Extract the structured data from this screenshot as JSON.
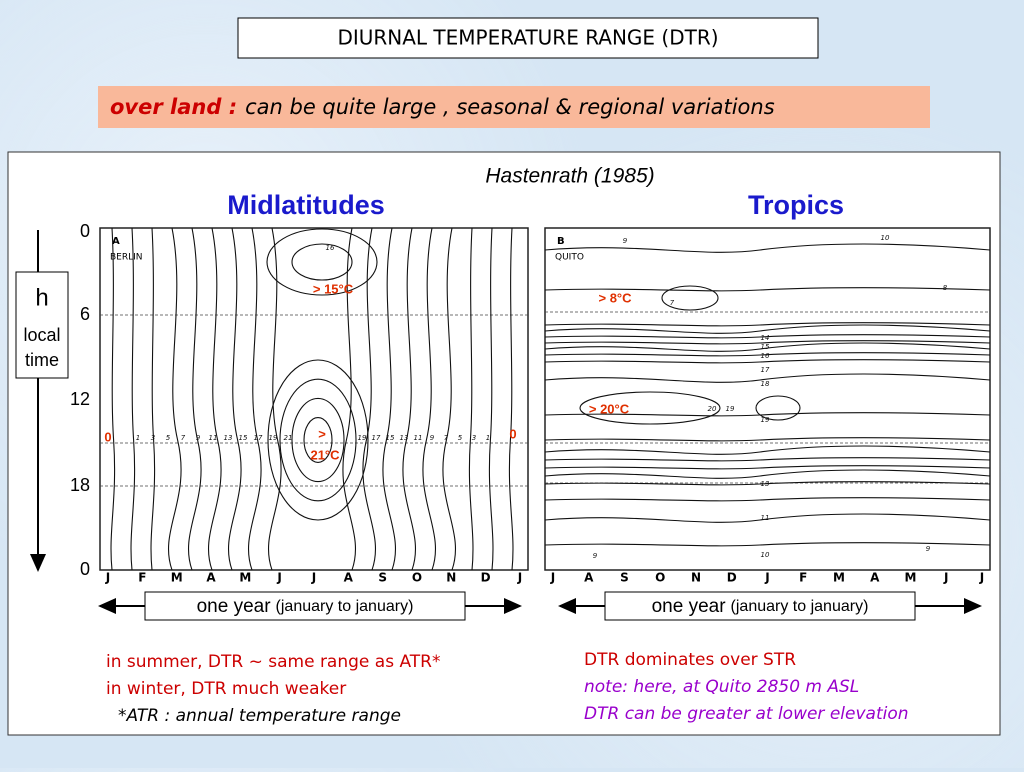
{
  "title": "DIURNAL TEMPERATURE RANGE (DTR)",
  "subtitle": {
    "lead": "over land :",
    "text": "can be quite large , seasonal & regional variations"
  },
  "source": "Hastenrath (1985)",
  "axis": {
    "ticks": [
      "0",
      "6",
      "12",
      "18",
      "0"
    ],
    "label_h": "h",
    "label_local": "local",
    "label_time": "time"
  },
  "panels": [
    {
      "title": "Midlatitudes",
      "tag": "A",
      "station": "BERLIN",
      "months": [
        "J",
        "F",
        "M",
        "A",
        "M",
        "J",
        "J",
        "A",
        "S",
        "O",
        "N",
        "D",
        "J"
      ],
      "annotations": [
        "> 15°C",
        "0",
        ">",
        "21°C",
        "0"
      ],
      "contour_labels": [
        "16",
        "1",
        "3",
        "5",
        "7",
        "9",
        "11",
        "13",
        "15",
        "17",
        "19",
        "21",
        "19",
        "17",
        "15",
        "13",
        "11",
        "9",
        "7",
        "5",
        "3",
        "1"
      ],
      "year": "one year",
      "year_note": "(january to january)",
      "notes": [
        "in summer, DTR ~ same range as ATR*",
        "in winter, DTR much weaker",
        "*ATR : annual temperature range"
      ]
    },
    {
      "title": "Tropics",
      "tag": "B",
      "station": "QUITO",
      "months": [
        "J",
        "A",
        "S",
        "O",
        "N",
        "D",
        "J",
        "F",
        "M",
        "A",
        "M",
        "J",
        "J"
      ],
      "annotations": [
        "> 8°C",
        "> 20°C"
      ],
      "contour_labels": [
        "9",
        "10",
        "8",
        "7",
        "20",
        "19",
        "19",
        "18",
        "17",
        "16",
        "15",
        "14",
        "13",
        "11",
        "10",
        "9",
        "9"
      ],
      "year": "one year",
      "year_note": "(january to january)",
      "notes": [
        "DTR dominates over STR",
        "note: here, at Quito 2850 m ASL",
        "DTR can be greater at lower elevation"
      ]
    }
  ]
}
